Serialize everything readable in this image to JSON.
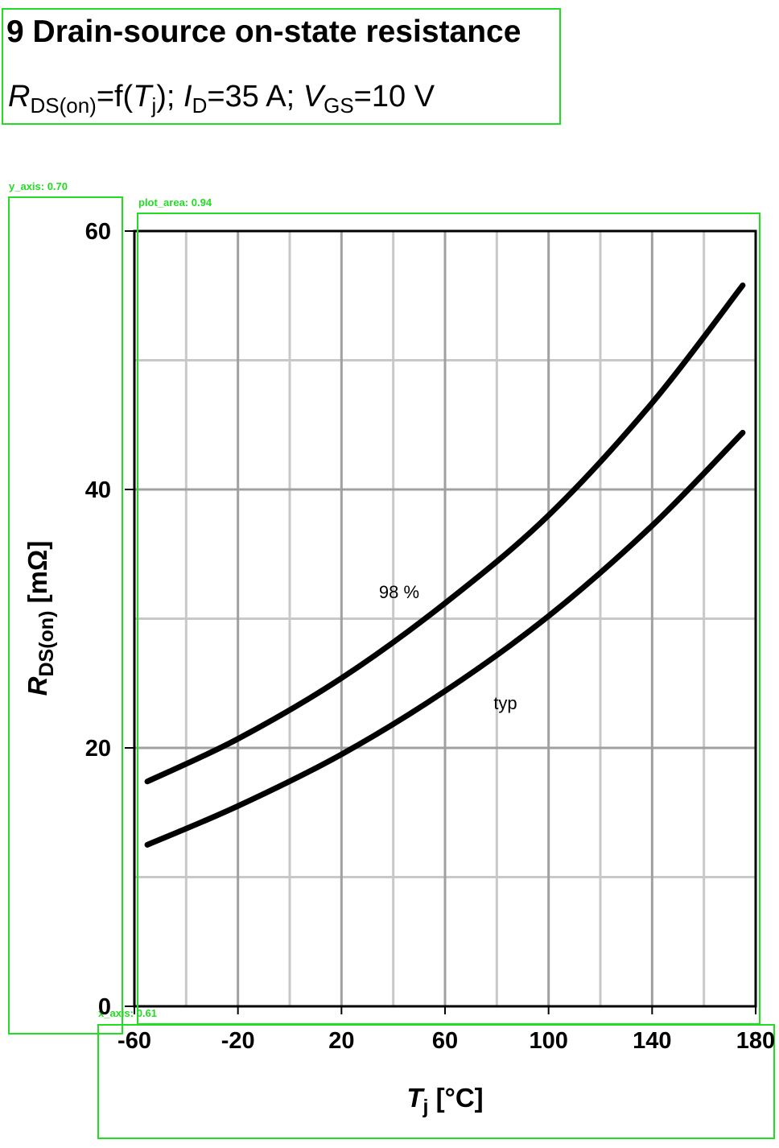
{
  "chart_data": {
    "type": "line",
    "title": "9 Drain-source on-state resistance",
    "subtitle": [
      "R",
      "DS(on)",
      "=f(",
      "T",
      "j",
      "); ",
      "I",
      "D",
      "=35 A; ",
      "V",
      "GS",
      "=10 V"
    ],
    "x_label": [
      "T",
      "j",
      " [°C]"
    ],
    "y_label": [
      "R",
      "DS(on)",
      " [mΩ]"
    ],
    "x": [
      -55,
      -20,
      20,
      60,
      100,
      140,
      175
    ],
    "series": [
      {
        "name": "98 %",
        "color": "#000000",
        "values": [
          17.4,
          20.7,
          25.4,
          31.2,
          38.0,
          46.7,
          55.8
        ]
      },
      {
        "name": "typ",
        "color": "#000000",
        "values": [
          12.5,
          15.5,
          19.5,
          24.4,
          30.2,
          37.2,
          44.4
        ]
      }
    ],
    "xlim": [
      -60,
      180
    ],
    "ylim": [
      0,
      60
    ],
    "xticks": [
      -60,
      -20,
      20,
      60,
      100,
      140,
      180
    ],
    "yticks": [
      0,
      20,
      40,
      60
    ],
    "xminorticks": [
      -40,
      0,
      40,
      80,
      120,
      160
    ],
    "yminorticks": [
      10,
      30,
      50
    ],
    "grid": true,
    "detections": [
      "y_axis: 0.70",
      "plot_area: 0.94",
      "x_axis: 0.61"
    ]
  }
}
